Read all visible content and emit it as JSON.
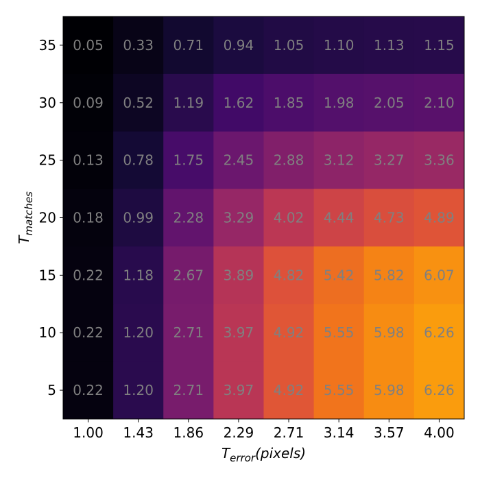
{
  "chart_data": {
    "type": "heatmap",
    "colormap": "inferno",
    "x": [
      "1.00",
      "1.43",
      "1.86",
      "2.29",
      "2.71",
      "3.14",
      "3.57",
      "4.00"
    ],
    "y": [
      "35",
      "30",
      "25",
      "20",
      "15",
      "10",
      "5"
    ],
    "values": [
      [
        0.05,
        0.33,
        0.71,
        0.94,
        1.05,
        1.1,
        1.13,
        1.15
      ],
      [
        0.09,
        0.52,
        1.19,
        1.62,
        1.85,
        1.98,
        2.05,
        2.1
      ],
      [
        0.13,
        0.78,
        1.75,
        2.45,
        2.88,
        3.12,
        3.27,
        3.36
      ],
      [
        0.18,
        0.99,
        2.28,
        3.29,
        4.02,
        4.44,
        4.73,
        4.89
      ],
      [
        0.22,
        1.18,
        2.67,
        3.89,
        4.82,
        5.42,
        5.82,
        6.07
      ],
      [
        0.22,
        1.2,
        2.71,
        3.97,
        4.92,
        5.55,
        5.98,
        6.26
      ],
      [
        0.22,
        1.2,
        2.71,
        3.97,
        4.92,
        5.55,
        5.98,
        6.26
      ]
    ],
    "vmin": 0.05,
    "vmax": 6.26,
    "xlabel": {
      "main": "T",
      "sub": "error",
      "suffix": "(pixels)"
    },
    "ylabel": {
      "main": "T",
      "sub": "matches"
    }
  }
}
